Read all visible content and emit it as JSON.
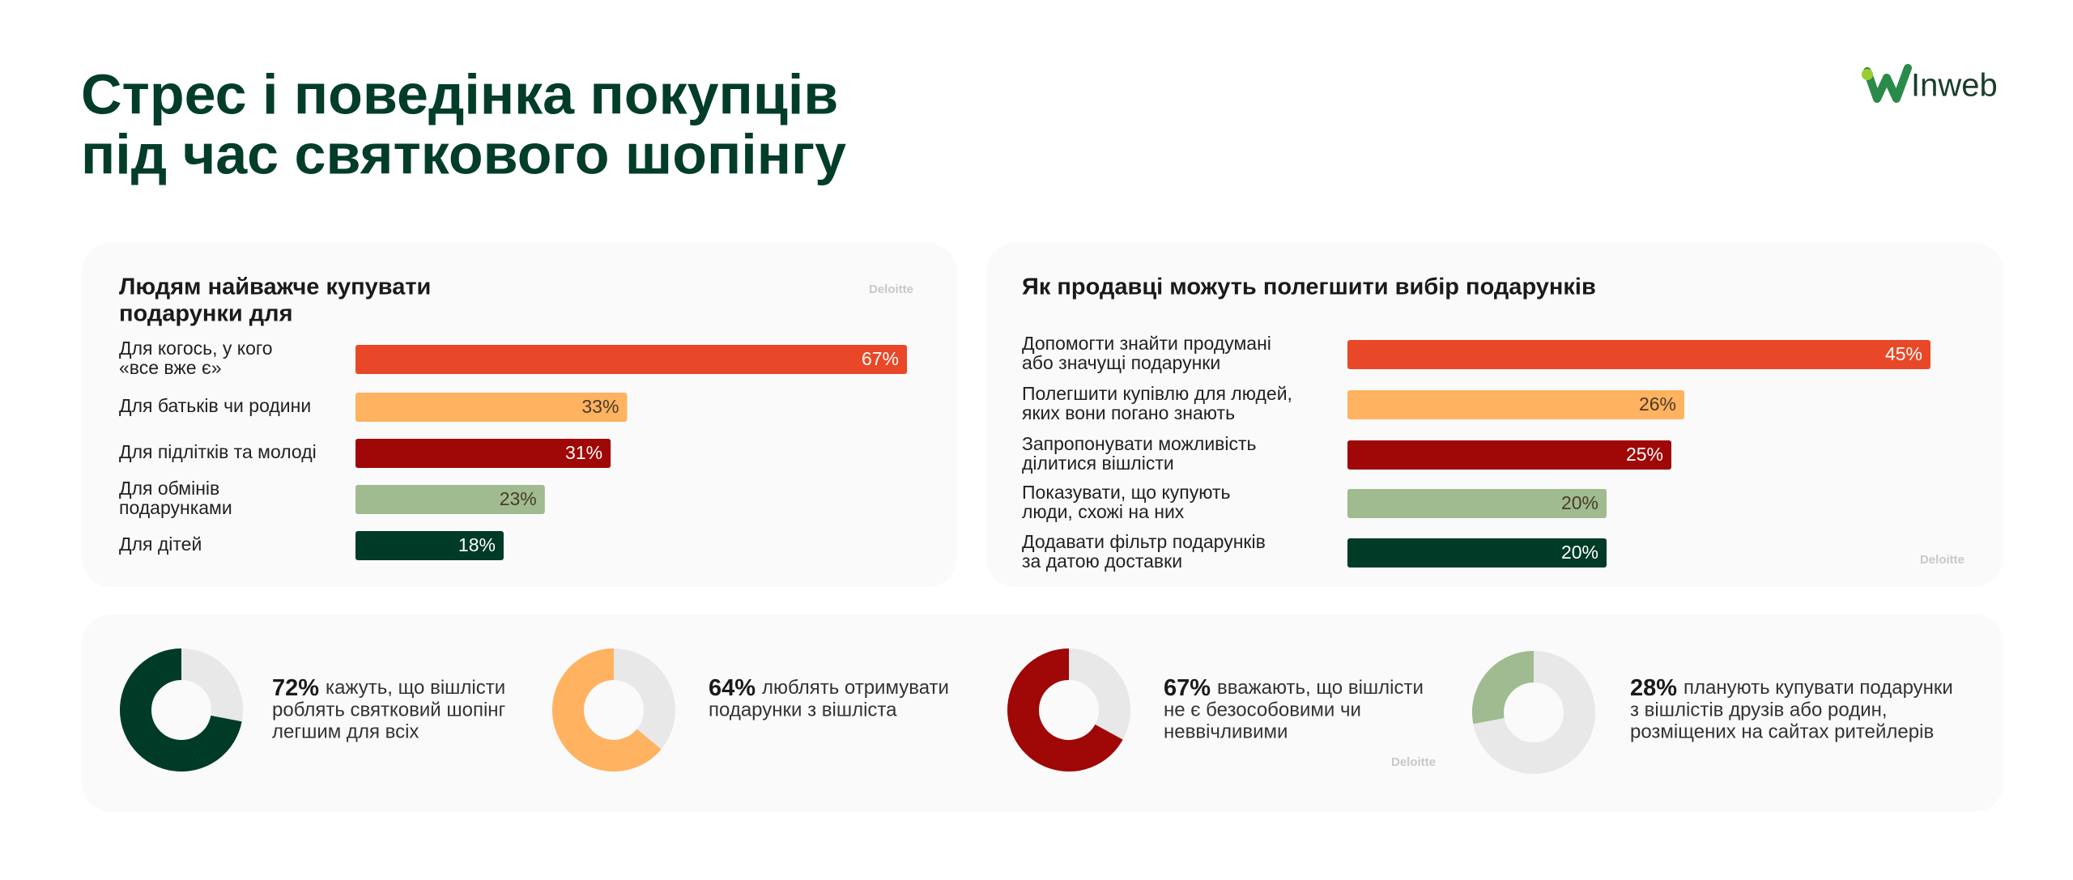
{
  "header": {
    "title_lines": [
      "Стрес і поведінка покупців",
      "під час святкового шопінгу"
    ],
    "logo": "Inweb"
  },
  "chart_data": [
    {
      "type": "bar",
      "orientation": "horizontal",
      "title_lines": [
        "Людям найважче купувати",
        "подарунки для"
      ],
      "source": "Deloitte",
      "categories": [
        [
          "Для когось, у кого",
          "«все вже є»"
        ],
        [
          "Для батьків чи родини"
        ],
        [
          "Для підлітків та молоді"
        ],
        [
          "Для обмінів",
          "подарунками"
        ],
        [
          "Для дітей"
        ]
      ],
      "values": [
        67,
        33,
        31,
        23,
        18
      ],
      "value_labels": [
        "67%",
        "33%",
        "31%",
        "23%",
        "18%"
      ],
      "colors": [
        "#e84827",
        "#ffb25f",
        "#a00707",
        "#9fbb8f",
        "#003b27"
      ]
    },
    {
      "type": "bar",
      "orientation": "horizontal",
      "title_lines": [
        "Як продавці можуть полегшити вибір подарунків"
      ],
      "source": "Deloitte",
      "categories": [
        [
          "Допомогти знайти продумані",
          "або значущі подарунки"
        ],
        [
          "Полегшити купівлю для людей,",
          "яких вони погано знають"
        ],
        [
          "Запропонувати можливість",
          "ділитися вішлісти"
        ],
        [
          "Показувати, що купують",
          "люди, схожі на них"
        ],
        [
          "Додавати фільтр подарунків",
          "за датою доставки"
        ]
      ],
      "values": [
        45,
        26,
        25,
        20,
        20
      ],
      "value_labels": [
        "45%",
        "26%",
        "25%",
        "20%",
        "20%"
      ],
      "colors": [
        "#e84827",
        "#ffb25f",
        "#a00707",
        "#9fbb8f",
        "#003b27"
      ]
    },
    {
      "type": "donut",
      "source": "Deloitte",
      "values": [
        72,
        64,
        67,
        28
      ],
      "value_labels": [
        "72%",
        "64%",
        "67%",
        "28%"
      ],
      "colors": [
        "#003b27",
        "#ffb25f",
        "#a00707",
        "#9fbb8f"
      ],
      "rest_color": "#e8e8e8",
      "captions": [
        [
          "кажуть, що вішлісти",
          "роблять святковий шопінг",
          "легшим для всіх"
        ],
        [
          "люблять отримувати",
          "подарунки з вішліста"
        ],
        [
          "вважають, що вішлісти",
          "не є безособовими чи",
          "неввічливими"
        ],
        [
          "планують купувати подарунки",
          "з вішлістів друзів або родин,",
          "розміщених на сайтах ритейлерів"
        ]
      ]
    }
  ]
}
